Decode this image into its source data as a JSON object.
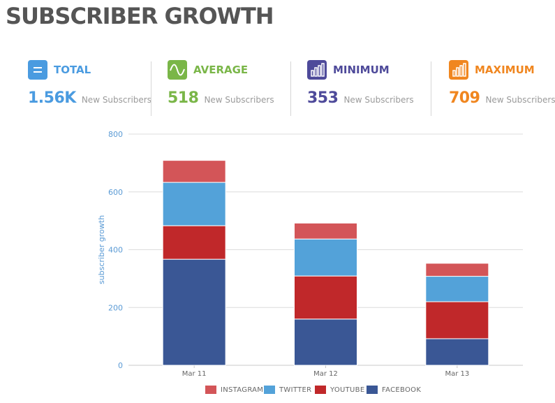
{
  "page": {
    "title": "SUBSCRIBER GROWTH"
  },
  "stats": [
    {
      "icon": "equals-icon",
      "label": "TOTAL",
      "value": "1.56K",
      "sublabel": "New Subscribers",
      "color": "#4a9be0"
    },
    {
      "icon": "wave-icon",
      "label": "AVERAGE",
      "value": "518",
      "sublabel": "New Subscribers",
      "color": "#7ab648"
    },
    {
      "icon": "bar-chart-icon",
      "label": "MINIMUM",
      "value": "353",
      "sublabel": "New Subscribers",
      "color": "#4e4a9a"
    },
    {
      "icon": "bar-chart-icon",
      "label": "MAXIMUM",
      "value": "709",
      "sublabel": "New Subscribers",
      "color": "#f0861f"
    }
  ],
  "chart_data": {
    "type": "bar",
    "stacked": true,
    "categories": [
      "Mar 11",
      "Mar 12",
      "Mar 13"
    ],
    "series": [
      {
        "name": "FACEBOOK",
        "values": [
          367,
          160,
          92
        ],
        "color": "#3a5795"
      },
      {
        "name": "YOUTUBE",
        "values": [
          116,
          149,
          128
        ],
        "color": "#c0282a"
      },
      {
        "name": "TWITTER",
        "values": [
          150,
          128,
          88
        ],
        "color": "#53a2d9"
      },
      {
        "name": "INSTAGRAM",
        "values": [
          76,
          55,
          45
        ],
        "color": "#d35558"
      }
    ],
    "ylabel": "subscriber growth",
    "ylim": [
      0,
      800
    ],
    "yticks": [
      "0",
      "200",
      "400",
      "600",
      "800"
    ],
    "grid": true,
    "legend": "bottom",
    "legend_order": [
      "INSTAGRAM",
      "TWITTER",
      "YOUTUBE",
      "FACEBOOK"
    ]
  }
}
